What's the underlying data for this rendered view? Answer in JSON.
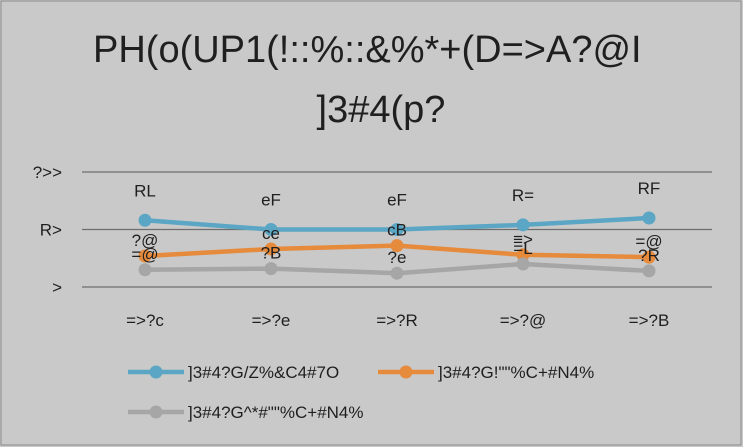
{
  "chart_data": {
    "type": "line",
    "title_lines": [
      "PH(o(UP1(!::%::&%*+(D=>A?@I",
      "]3#4(p?"
    ],
    "categories": [
      "=>?c",
      "=>?e",
      "=>?R",
      "=>?@",
      "=>?B"
    ],
    "y_ticks": [
      ">",
      "R>",
      "?>>"
    ],
    "ylim": [
      0,
      100
    ],
    "grid": true,
    "legend_position": "bottom",
    "series": [
      {
        "name": "]3#4?G/Z%&C4#7O",
        "color": "#5ba6c4",
        "values": [
          58,
          50,
          50,
          54,
          60
        ],
        "labels": [
          "RL",
          "eF",
          "eF",
          "R=",
          "RF"
        ]
      },
      {
        "name": "]3#4?G!\"\"%C+#N4%",
        "color": "#e68a3c",
        "values": [
          27,
          33,
          36,
          28,
          26
        ],
        "labels": [
          "?@",
          "ce",
          "cB",
          "≡>",
          "=@"
        ]
      },
      {
        "name": "]3#4?G^*#\"\"%C+#N4%",
        "color": "#a6a6a6",
        "values": [
          15,
          16,
          12,
          20,
          14
        ],
        "labels": [
          "=@",
          "?B",
          "?e",
          "=L",
          "?R"
        ]
      }
    ]
  }
}
